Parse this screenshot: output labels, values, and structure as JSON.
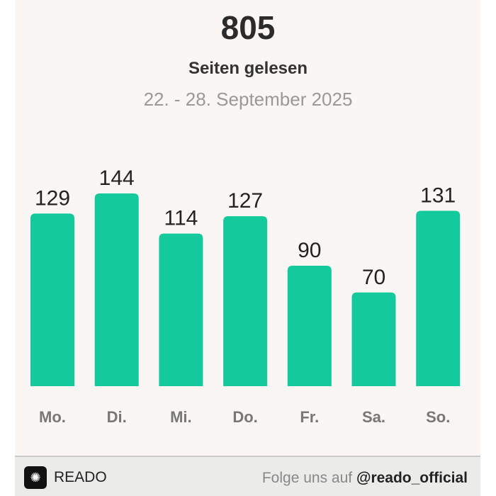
{
  "header": {
    "total": "805",
    "subtitle": "Seiten gelesen",
    "date_range": "22. - 28. September 2025"
  },
  "chart_data": {
    "type": "bar",
    "categories": [
      "Mo.",
      "Di.",
      "Mi.",
      "Do.",
      "Fr.",
      "Sa.",
      "So."
    ],
    "values": [
      129,
      144,
      114,
      127,
      90,
      70,
      131
    ],
    "ylim": [
      0,
      144
    ],
    "grid": false,
    "bar_color": "#14c99c",
    "data_labels": true
  },
  "footer": {
    "brand": "READO",
    "follow_text": "Folge uns auf",
    "handle": "@reado_official"
  }
}
